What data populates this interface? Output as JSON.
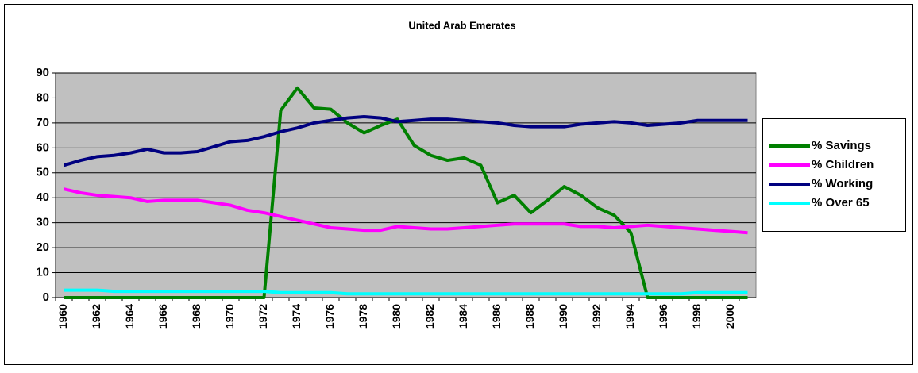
{
  "chart_data": {
    "type": "line",
    "title": "United Arab Emerates",
    "categories": [
      "1960",
      null,
      "1962",
      null,
      "1964",
      null,
      "1966",
      null,
      "1968",
      null,
      "1970",
      null,
      "1972",
      null,
      "1974",
      null,
      "1976",
      null,
      "1978",
      null,
      "1980",
      null,
      "1982",
      null,
      "1984",
      null,
      "1986",
      null,
      "1988",
      null,
      "1990",
      null,
      "1992",
      null,
      "1994",
      null,
      "1996",
      null,
      "1998",
      null,
      "2000",
      null
    ],
    "series": [
      {
        "name": "% Savings",
        "color": "#008000",
        "values": [
          0,
          0,
          0,
          0,
          0,
          0,
          0,
          0,
          0,
          0,
          0,
          0,
          0,
          75,
          84,
          76,
          75.5,
          70,
          66,
          69,
          71.5,
          61,
          57,
          55,
          56,
          53,
          38,
          41,
          34,
          39,
          44.5,
          41,
          36,
          33,
          26,
          0,
          0,
          0,
          0,
          0,
          0,
          0
        ]
      },
      {
        "name": "% Children",
        "color": "#ff00ff",
        "values": [
          43.5,
          42,
          41,
          40.5,
          40,
          38.5,
          39,
          39,
          39,
          38,
          37,
          35,
          34,
          32.5,
          31,
          29.5,
          28,
          27.5,
          27,
          27,
          28.5,
          28,
          27.5,
          27.5,
          28,
          28.5,
          29,
          29.5,
          29.5,
          29.5,
          29.5,
          28.5,
          28.5,
          28,
          28.5,
          29,
          28.5,
          28,
          27.5,
          27,
          26.5,
          26
        ]
      },
      {
        "name": "% Working",
        "color": "#000080",
        "values": [
          53,
          55,
          56.5,
          57,
          58,
          59.5,
          58,
          58,
          58.5,
          60.5,
          62.5,
          63,
          64.5,
          66.5,
          68,
          70,
          71,
          72,
          72.5,
          72,
          70.5,
          71,
          71.5,
          71.5,
          71,
          70.5,
          70,
          69,
          68.5,
          68.5,
          68.5,
          69.5,
          70,
          70.5,
          70,
          69,
          69.5,
          70,
          71,
          71,
          71,
          71
        ]
      },
      {
        "name": "% Over 65",
        "color": "#00ffff",
        "values": [
          3,
          3,
          3,
          2.5,
          2.5,
          2.5,
          2.5,
          2.5,
          2.5,
          2.5,
          2.5,
          2.5,
          2.5,
          2,
          2,
          2,
          2,
          1.5,
          1.5,
          1.5,
          1.5,
          1.5,
          1.5,
          1.5,
          1.5,
          1.5,
          1.5,
          1.5,
          1.5,
          1.5,
          1.5,
          1.5,
          1.5,
          1.5,
          1.5,
          1.5,
          1.5,
          1.5,
          2,
          2,
          2,
          2
        ]
      }
    ],
    "ylim": [
      0,
      90
    ],
    "yticks": [
      0,
      10,
      20,
      30,
      40,
      50,
      60,
      70,
      80,
      90
    ],
    "grid": true,
    "legend": "right"
  }
}
